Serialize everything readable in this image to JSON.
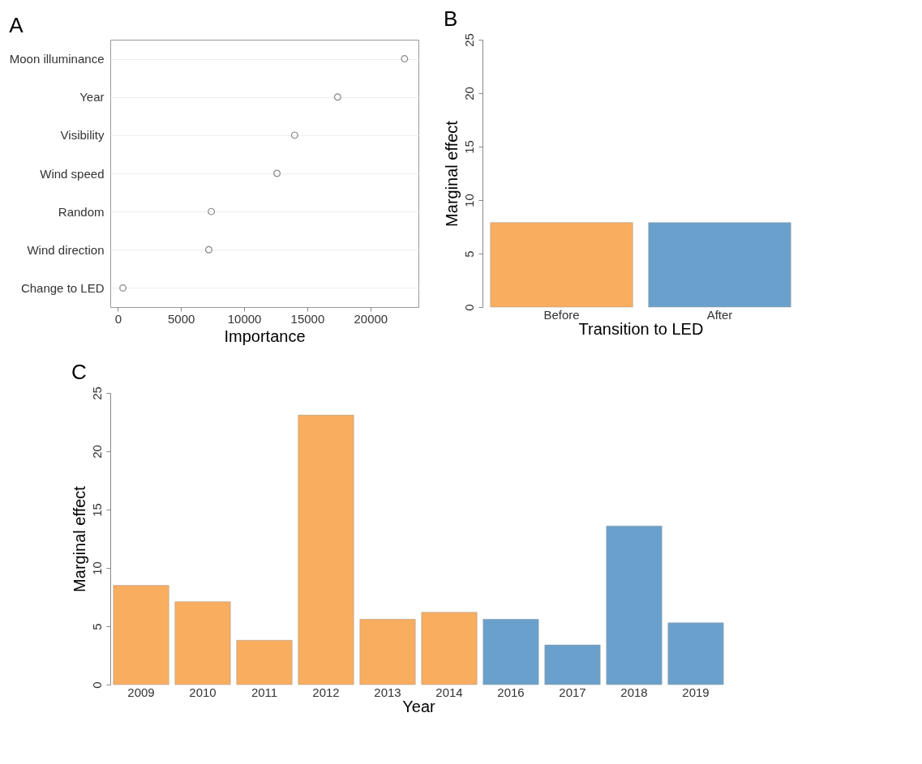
{
  "chart_data": [
    {
      "type": "scatter",
      "title": "A",
      "xlabel": "Importance",
      "categories": [
        "Moon illuminance",
        "Year",
        "Visibility",
        "Wind speed",
        "Random",
        "Wind direction",
        "Change to LED"
      ],
      "orientation": "horizontal",
      "series": [
        {
          "color": "#888888",
          "values": [
            22700,
            17400,
            14000,
            12600,
            7400,
            7200,
            400
          ]
        }
      ],
      "xlim": [
        -600,
        23800
      ],
      "xticks": [
        0,
        5000,
        10000,
        15000,
        20000
      ],
      "grid": "y",
      "marker": "circle"
    },
    {
      "type": "bar",
      "title": "B",
      "xlabel": "Transition to LED",
      "ylabel": "Marginal effect",
      "categories": [
        "Before",
        "After"
      ],
      "values": [
        7.9,
        7.9
      ],
      "colors": [
        "#f9ad5f",
        "#6aa1cc"
      ],
      "ylim": [
        0,
        25
      ],
      "yticks": [
        0,
        5,
        10,
        15,
        20,
        25
      ]
    },
    {
      "type": "bar",
      "title": "C",
      "xlabel": "Year",
      "ylabel": "Marginal effect",
      "categories": [
        "2009",
        "2010",
        "2011",
        "2012",
        "2013",
        "2014",
        "2016",
        "2017",
        "2018",
        "2019"
      ],
      "values": [
        8.5,
        7.1,
        3.8,
        23.1,
        5.6,
        6.2,
        5.6,
        3.4,
        13.6,
        5.3
      ],
      "colors": [
        "#f9ad5f",
        "#f9ad5f",
        "#f9ad5f",
        "#f9ad5f",
        "#f9ad5f",
        "#f9ad5f",
        "#6aa1cc",
        "#6aa1cc",
        "#6aa1cc",
        "#6aa1cc"
      ],
      "ylim": [
        0,
        25
      ],
      "yticks": [
        0,
        5,
        10,
        15,
        20,
        25
      ]
    }
  ]
}
